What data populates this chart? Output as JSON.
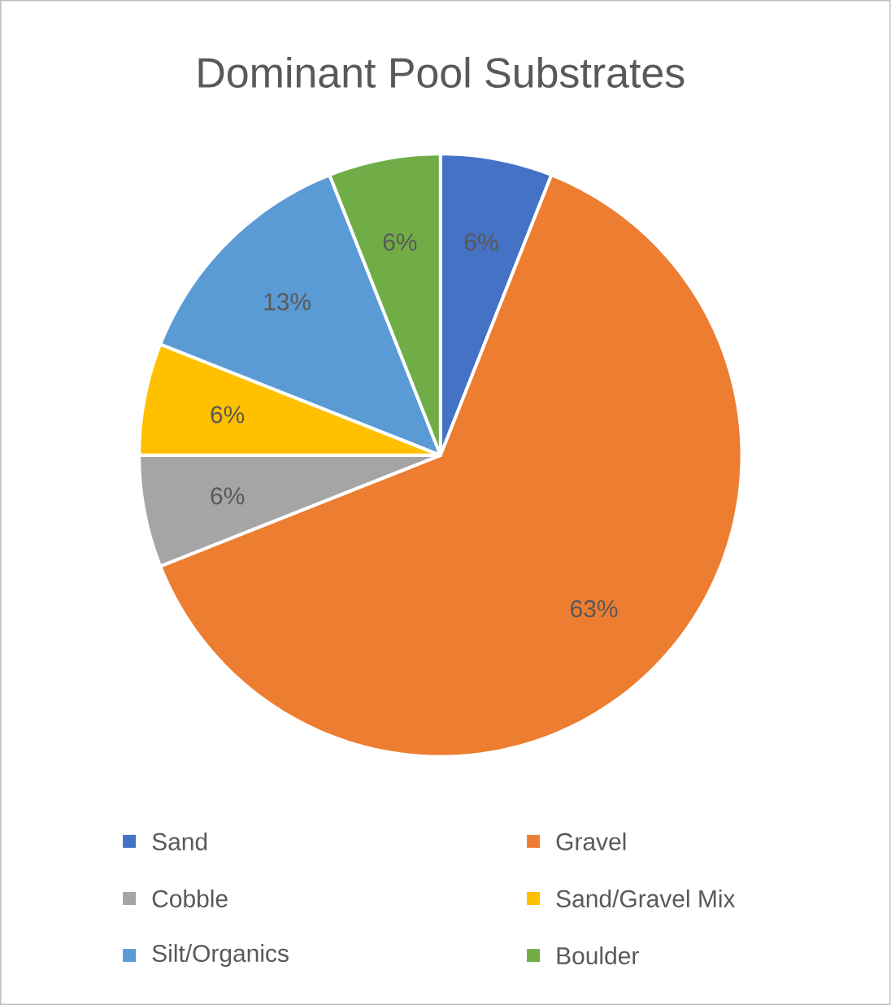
{
  "chart_data": {
    "type": "pie",
    "title": "Dominant Pool Substrates",
    "categories": [
      "Sand",
      "Gravel",
      "Cobble",
      "Sand/Gravel Mix",
      "Silt/Organics",
      "Boulder"
    ],
    "values": [
      6,
      63,
      6,
      6,
      13,
      6
    ],
    "value_labels": [
      "6%",
      "63%",
      "6%",
      "6%",
      "13%",
      "6%"
    ],
    "colors": [
      "#4472c4",
      "#ed7d31",
      "#a5a5a5",
      "#ffc000",
      "#5b9bd5",
      "#70ad47"
    ],
    "legend": "bottom"
  }
}
